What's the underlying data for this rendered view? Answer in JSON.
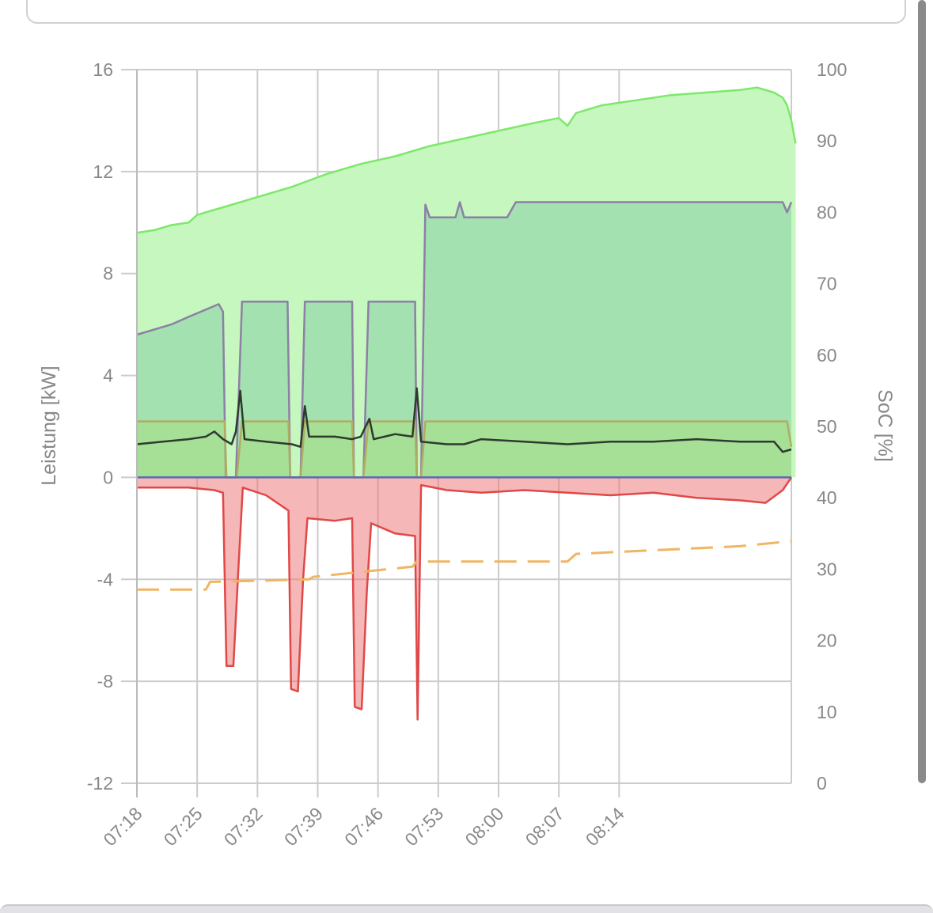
{
  "chart_data": {
    "type": "area",
    "ylabel_left": "Leistung [kW]",
    "ylabel_right": "SoC [%]",
    "ylim_left": [
      -12,
      16
    ],
    "ylim_right": [
      0,
      100
    ],
    "yticks_left": [
      "16",
      "12",
      "8",
      "4",
      "0",
      "-4",
      "-8",
      "-12"
    ],
    "yticks_right": [
      "100",
      "90",
      "80",
      "70",
      "60",
      "50",
      "40",
      "30",
      "20",
      "10",
      "0"
    ],
    "xticks": [
      "07:18",
      "07:25",
      "07:32",
      "07:39",
      "07:46",
      "07:53",
      "08:00",
      "08:07",
      "08:14"
    ],
    "grid": true,
    "series": [
      {
        "color": "#7de86a",
        "fill": "#c6f7be",
        "points": [
          [
            0,
            9.6
          ],
          [
            2,
            9.7
          ],
          [
            4,
            9.9
          ],
          [
            6,
            10.0
          ],
          [
            7,
            10.3
          ],
          [
            10,
            10.6
          ],
          [
            14,
            11.0
          ],
          [
            18,
            11.4
          ],
          [
            22,
            11.9
          ],
          [
            26,
            12.3
          ],
          [
            30,
            12.6
          ],
          [
            34,
            13.0
          ],
          [
            38,
            13.3
          ],
          [
            42,
            13.6
          ],
          [
            46,
            13.9
          ],
          [
            49,
            14.1
          ],
          [
            50,
            13.8
          ],
          [
            51,
            14.3
          ],
          [
            54,
            14.6
          ],
          [
            58,
            14.8
          ],
          [
            62,
            15.0
          ],
          [
            66,
            15.1
          ],
          [
            70,
            15.2
          ],
          [
            72,
            15.3
          ],
          [
            74,
            15.1
          ],
          [
            75,
            14.9
          ],
          [
            75.5,
            14.6
          ],
          [
            76,
            14.0
          ],
          [
            76.5,
            13.1
          ]
        ]
      },
      {
        "color": "#8d7fa6",
        "fill": "rgba(120,200,160,0.45)",
        "points": [
          [
            0,
            5.6
          ],
          [
            4,
            6.0
          ],
          [
            6,
            6.3
          ],
          [
            9.5,
            6.8
          ],
          [
            10,
            6.5
          ],
          [
            10.3,
            0.0
          ],
          [
            11.5,
            0.0
          ],
          [
            12.2,
            6.9
          ],
          [
            17.5,
            6.9
          ],
          [
            17.8,
            0.0
          ],
          [
            19,
            0.0
          ],
          [
            19.5,
            6.9
          ],
          [
            25,
            6.9
          ],
          [
            25.2,
            0.0
          ],
          [
            26.3,
            0.0
          ],
          [
            26.9,
            6.9
          ],
          [
            32.3,
            6.9
          ],
          [
            32.5,
            0.0
          ],
          [
            33,
            0.0
          ],
          [
            33.5,
            10.7
          ],
          [
            34,
            10.2
          ],
          [
            37,
            10.2
          ],
          [
            37.5,
            10.8
          ],
          [
            38,
            10.2
          ],
          [
            43,
            10.2
          ],
          [
            44,
            10.8
          ],
          [
            75,
            10.8
          ],
          [
            75.5,
            10.4
          ],
          [
            76,
            10.8
          ]
        ]
      },
      {
        "color": "#b0ad60",
        "fill": "rgba(170,220,120,0.45)",
        "points": [
          [
            0,
            2.2
          ],
          [
            10.2,
            2.2
          ],
          [
            10.4,
            0.0
          ],
          [
            11.6,
            0.0
          ],
          [
            12.2,
            2.2
          ],
          [
            17.6,
            2.2
          ],
          [
            17.8,
            0.0
          ],
          [
            19,
            0.0
          ],
          [
            19.5,
            2.2
          ],
          [
            25,
            2.2
          ],
          [
            25.2,
            0.0
          ],
          [
            26.3,
            0.0
          ],
          [
            26.9,
            2.2
          ],
          [
            32.3,
            2.2
          ],
          [
            32.5,
            0.0
          ],
          [
            33,
            0.0
          ],
          [
            33.5,
            2.2
          ],
          [
            75.5,
            2.2
          ],
          [
            76,
            1.2
          ]
        ]
      },
      {
        "color": "#2f3a2f",
        "fill": "none",
        "points": [
          [
            0,
            1.3
          ],
          [
            3,
            1.4
          ],
          [
            6,
            1.5
          ],
          [
            8,
            1.6
          ],
          [
            9,
            1.8
          ],
          [
            10,
            1.5
          ],
          [
            11,
            1.3
          ],
          [
            11.5,
            1.8
          ],
          [
            12,
            3.4
          ],
          [
            12.5,
            1.5
          ],
          [
            15,
            1.4
          ],
          [
            18,
            1.3
          ],
          [
            19,
            1.2
          ],
          [
            19.5,
            2.8
          ],
          [
            20,
            1.6
          ],
          [
            23,
            1.6
          ],
          [
            25,
            1.5
          ],
          [
            26,
            1.6
          ],
          [
            27,
            2.3
          ],
          [
            27.5,
            1.5
          ],
          [
            30,
            1.7
          ],
          [
            32,
            1.6
          ],
          [
            32.5,
            3.5
          ],
          [
            33,
            1.4
          ],
          [
            36,
            1.3
          ],
          [
            38,
            1.3
          ],
          [
            40,
            1.5
          ],
          [
            45,
            1.4
          ],
          [
            50,
            1.3
          ],
          [
            55,
            1.4
          ],
          [
            60,
            1.4
          ],
          [
            65,
            1.5
          ],
          [
            70,
            1.4
          ],
          [
            74,
            1.4
          ],
          [
            75,
            1.0
          ],
          [
            76,
            1.1
          ]
        ]
      },
      {
        "color": "#e04848",
        "fill": "rgba(236,112,112,0.5)",
        "points": [
          [
            0,
            -0.4
          ],
          [
            6,
            -0.4
          ],
          [
            9,
            -0.5
          ],
          [
            10,
            -0.6
          ],
          [
            10.4,
            -7.4
          ],
          [
            11.2,
            -7.4
          ],
          [
            11.8,
            -3.5
          ],
          [
            12.3,
            -0.4
          ],
          [
            15,
            -0.7
          ],
          [
            17.6,
            -1.3
          ],
          [
            17.9,
            -8.3
          ],
          [
            18.7,
            -8.4
          ],
          [
            19.3,
            -4.0
          ],
          [
            19.8,
            -1.6
          ],
          [
            23,
            -1.7
          ],
          [
            25,
            -1.6
          ],
          [
            25.3,
            -9.0
          ],
          [
            26.1,
            -9.1
          ],
          [
            26.7,
            -4.5
          ],
          [
            27.2,
            -1.8
          ],
          [
            30,
            -2.2
          ],
          [
            32.3,
            -2.3
          ],
          [
            32.6,
            -9.5
          ],
          [
            33,
            -0.3
          ],
          [
            36,
            -0.5
          ],
          [
            40,
            -0.6
          ],
          [
            45,
            -0.5
          ],
          [
            50,
            -0.6
          ],
          [
            55,
            -0.7
          ],
          [
            60,
            -0.6
          ],
          [
            65,
            -0.8
          ],
          [
            70,
            -0.9
          ],
          [
            73,
            -1.0
          ],
          [
            75,
            -0.5
          ],
          [
            76,
            0.0
          ]
        ]
      },
      {
        "color": "#5a6bb0",
        "fill": "none",
        "points": [
          [
            0,
            0.0
          ],
          [
            76,
            0.0
          ]
        ]
      },
      {
        "color": "#f0b562",
        "fill": "none",
        "dash": true,
        "points": [
          [
            0,
            -4.4
          ],
          [
            8,
            -4.4
          ],
          [
            8.5,
            -4.1
          ],
          [
            20,
            -4.0
          ],
          [
            20.5,
            -3.9
          ],
          [
            32,
            -3.5
          ],
          [
            32.5,
            -3.3
          ],
          [
            50,
            -3.3
          ],
          [
            51,
            -3.0
          ],
          [
            70,
            -2.7
          ],
          [
            76,
            -2.5
          ]
        ]
      }
    ]
  }
}
